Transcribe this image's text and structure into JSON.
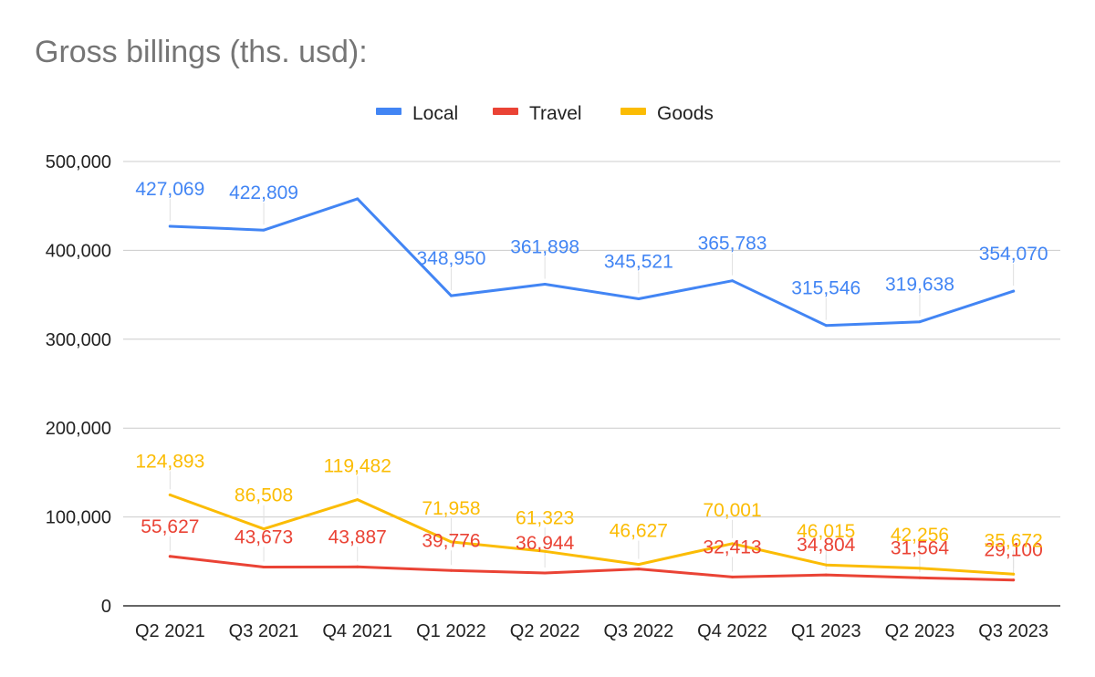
{
  "chart_data": {
    "type": "line",
    "title": "Gross billings (ths. usd):",
    "categories": [
      "Q2 2021",
      "Q3 2021",
      "Q4 2021",
      "Q1 2022",
      "Q2 2022",
      "Q3 2022",
      "Q4 2022",
      "Q1 2023",
      "Q2 2023",
      "Q3 2023"
    ],
    "series": [
      {
        "name": "Local",
        "color": "#4285f4",
        "values": [
          427069,
          422809,
          458000,
          348950,
          361898,
          345521,
          365783,
          315546,
          319638,
          354070
        ],
        "labels": [
          "427,069",
          "422,809",
          "",
          "348,950",
          "361,898",
          "345,521",
          "365,783",
          "315,546",
          "319,638",
          "354,070"
        ]
      },
      {
        "name": "Travel",
        "color": "#ea4335",
        "values": [
          55627,
          43673,
          43887,
          39776,
          36944,
          41500,
          32413,
          34804,
          31564,
          29100
        ],
        "labels": [
          "55,627",
          "43,673",
          "43,887",
          "39,776",
          "36,944",
          "",
          "32,413",
          "34,804",
          "31,564",
          "29,100"
        ]
      },
      {
        "name": "Goods",
        "color": "#fbbc04",
        "values": [
          124893,
          86508,
          119482,
          71958,
          61323,
          46627,
          70001,
          46015,
          42256,
          35672
        ],
        "labels": [
          "124,893",
          "86,508",
          "119,482",
          "71,958",
          "61,323",
          "46,627",
          "70,001",
          "46,015",
          "42,256",
          "35,672"
        ]
      }
    ],
    "yticks": [
      "0",
      "100,000",
      "200,000",
      "300,000",
      "400,000",
      "500,000"
    ],
    "ylim": [
      0,
      500000
    ],
    "grid": true,
    "legend": "top-center"
  }
}
